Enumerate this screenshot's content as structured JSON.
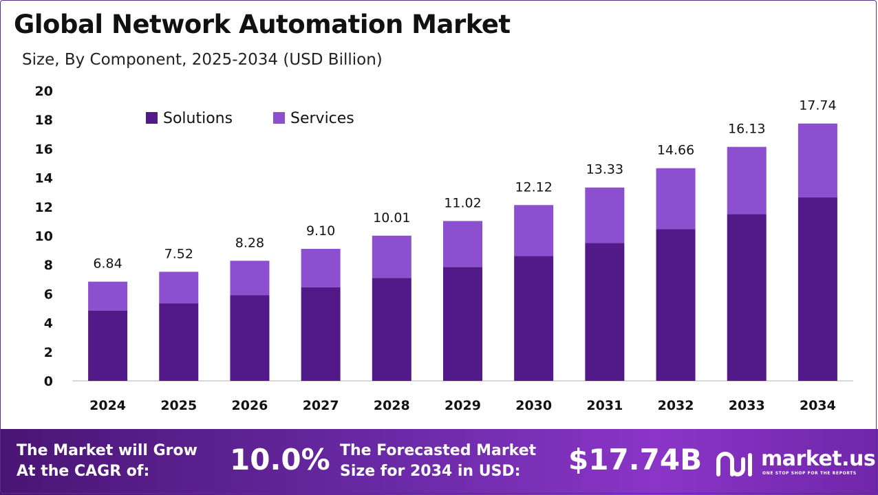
{
  "header": {
    "title": "Global Network Automation Market",
    "subtitle": "Size, By Component, 2025-2034 (USD Billion)"
  },
  "colors": {
    "solutions": "#521a88",
    "services": "#8c4fd0",
    "axis": "#cccccc",
    "text": "#111111"
  },
  "chart_data": {
    "type": "bar",
    "stacked": true,
    "categories": [
      "2024",
      "2025",
      "2026",
      "2027",
      "2028",
      "2029",
      "2030",
      "2031",
      "2032",
      "2033",
      "2034"
    ],
    "series": [
      {
        "name": "Solutions",
        "values": [
          4.85,
          5.35,
          5.9,
          6.45,
          7.1,
          7.85,
          8.6,
          9.5,
          10.45,
          11.5,
          12.65
        ]
      },
      {
        "name": "Services",
        "values": [
          1.99,
          2.17,
          2.38,
          2.65,
          2.91,
          3.17,
          3.52,
          3.83,
          4.21,
          4.63,
          5.09
        ]
      }
    ],
    "totals": [
      "6.84",
      "7.52",
      "8.28",
      "9.10",
      "10.01",
      "11.02",
      "12.12",
      "13.33",
      "14.66",
      "16.13",
      "17.74"
    ],
    "ylim": [
      0,
      20
    ],
    "yticks": [
      "0",
      "2",
      "4",
      "6",
      "8",
      "10",
      "12",
      "14",
      "16",
      "18",
      "20"
    ],
    "grid": false,
    "legend": "top-left",
    "xlabel": "",
    "ylabel": ""
  },
  "footer": {
    "cagr_line1": "The Market will Grow",
    "cagr_line2": "At the CAGR of:",
    "cagr_value": "10.0%",
    "forecast_line1": "The Forecasted Market",
    "forecast_line2": "Size for 2034 in USD:",
    "forecast_value": "$17.74B",
    "logo_text": "market.us",
    "logo_tagline": "ONE STOP SHOP FOR THE REPORTS"
  }
}
